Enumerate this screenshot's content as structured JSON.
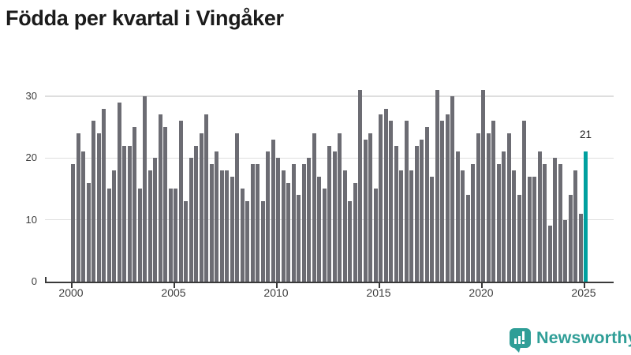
{
  "title": "Födda per kvartal i Vingåker",
  "axes": {
    "y_ticks": [
      "0",
      "10",
      "20",
      "30"
    ],
    "x_ticks": [
      "2000",
      "2005",
      "2010",
      "2015",
      "2020",
      "2025"
    ]
  },
  "highlight": {
    "label": "21"
  },
  "logo": {
    "text": "Newsworthy",
    "icon": "bar-chart-speech-bubble-icon"
  },
  "colors": {
    "bar": "#6c6c73",
    "highlight": "#00a09f",
    "gridline": "#dedede",
    "axis_line": "#3a3a3a",
    "axis_text": "#3d3d3d",
    "title_text": "#1b1b1b",
    "logo_teal": "#2f9e97"
  },
  "chart_data": {
    "type": "bar",
    "title": "Födda per kvartal i Vingåker",
    "x_unit": "quarter",
    "start": "2000-Q1",
    "end": "2025-Q1",
    "ylabel": "",
    "xlabel": "",
    "ylim": [
      0,
      31
    ],
    "y_gridlines": [
      10,
      20,
      30
    ],
    "x_tick_years": [
      2000,
      2005,
      2010,
      2015,
      2020,
      2025
    ],
    "grid": true,
    "legend": false,
    "highlight_index": 100,
    "highlight_value": 21,
    "values_by_year": {
      "2000": [
        19,
        24,
        21,
        16
      ],
      "2001": [
        26,
        24,
        28,
        15
      ],
      "2002": [
        18,
        29,
        22,
        22
      ],
      "2003": [
        25,
        15,
        30,
        18
      ],
      "2004": [
        20,
        27,
        25,
        15
      ],
      "2005": [
        15,
        26,
        13,
        20
      ],
      "2006": [
        22,
        24,
        27,
        19
      ],
      "2007": [
        21,
        18,
        18,
        17
      ],
      "2008": [
        24,
        15,
        13,
        19
      ],
      "2009": [
        19,
        13,
        21,
        23
      ],
      "2010": [
        20,
        18,
        16,
        19
      ],
      "2011": [
        14,
        19,
        20,
        24
      ],
      "2012": [
        17,
        15,
        22,
        21
      ],
      "2013": [
        24,
        18,
        13,
        16
      ],
      "2014": [
        31,
        23,
        24,
        15
      ],
      "2015": [
        27,
        28,
        26,
        22
      ],
      "2016": [
        18,
        26,
        18,
        22
      ],
      "2017": [
        23,
        25,
        17,
        31
      ],
      "2018": [
        26,
        27,
        30,
        21
      ],
      "2019": [
        18,
        14,
        19,
        24
      ],
      "2020": [
        31,
        24,
        26,
        19
      ],
      "2021": [
        21,
        24,
        18,
        14
      ],
      "2022": [
        26,
        17,
        17,
        21
      ],
      "2023": [
        19,
        9,
        20,
        19
      ],
      "2024": [
        10,
        14,
        18,
        11
      ],
      "2025": [
        21
      ]
    }
  }
}
